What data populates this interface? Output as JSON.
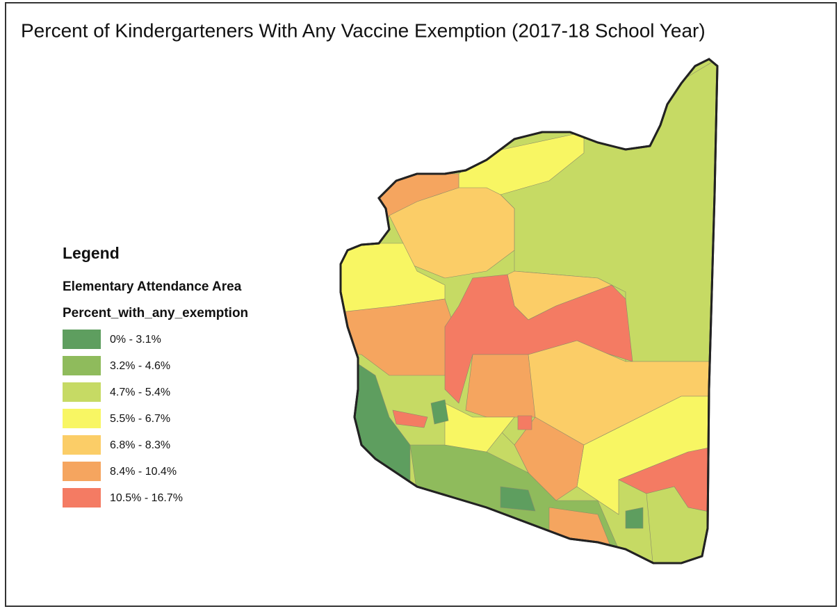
{
  "title": "Percent of Kindergarteners With Any Vaccine Exemption (2017-18 School Year)",
  "legend": {
    "heading": "Legend",
    "layer": "Elementary Attendance Area",
    "field": "Percent_with_any_exemption",
    "items": [
      {
        "label": "0% - 3.1%",
        "color": "#5e9e5f"
      },
      {
        "label": "3.2% - 4.6%",
        "color": "#8fbb5c"
      },
      {
        "label": "4.7% - 5.4%",
        "color": "#c6da64"
      },
      {
        "label": "5.5% - 6.7%",
        "color": "#f8f663"
      },
      {
        "label": "6.8% - 8.3%",
        "color": "#fbcd67"
      },
      {
        "label": "8.4% - 10.4%",
        "color": "#f5a55f"
      },
      {
        "label": "10.5% - 16.7%",
        "color": "#f47b63"
      }
    ]
  }
}
